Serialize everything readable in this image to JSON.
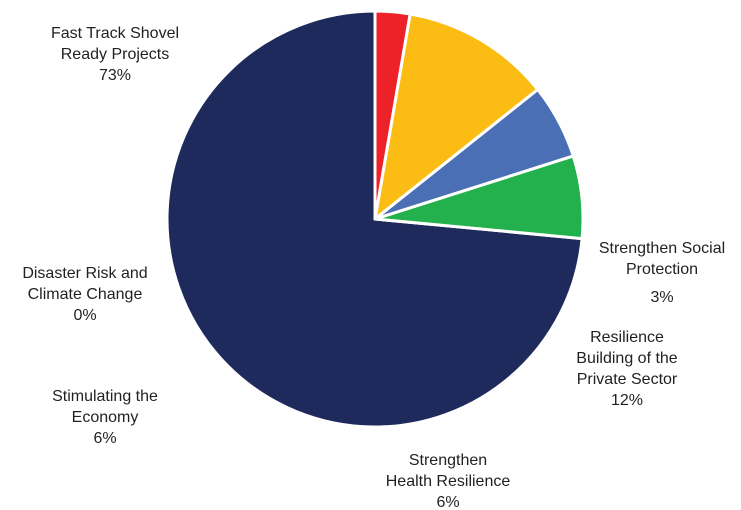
{
  "chart_data": {
    "type": "pie",
    "title": "",
    "start_angle_deg": 90,
    "direction": "counterclockwise",
    "slice_border_color": "#ffffff",
    "slices": [
      {
        "id": "fast-track",
        "label_lines": [
          "Fast Track Shovel",
          "Ready Projects"
        ],
        "percent_label": "73%",
        "value": 73.5,
        "color": "#1e2a5c"
      },
      {
        "id": "disaster-risk",
        "label_lines": [
          "Disaster Risk and",
          "Climate Change"
        ],
        "percent_label": "0%",
        "value": 0,
        "color": "#a0a0a0"
      },
      {
        "id": "stimulating",
        "label_lines": [
          "Stimulating the",
          "Economy"
        ],
        "percent_label": "6%",
        "value": 6.4,
        "color": "#22b14c"
      },
      {
        "id": "health",
        "label_lines": [
          "Strengthen",
          "Health Resilience"
        ],
        "percent_label": "6%",
        "value": 5.8,
        "color": "#4a6fb5"
      },
      {
        "id": "private-sector",
        "label_lines": [
          "Resilience",
          "Building of the",
          "Private Sector"
        ],
        "percent_label": "12%",
        "value": 11.6,
        "color": "#fbbd14"
      },
      {
        "id": "social",
        "label_lines": [
          "Strengthen Social",
          "Protection"
        ],
        "percent_label": "3%",
        "value": 2.7,
        "color": "#ed2229"
      }
    ]
  }
}
